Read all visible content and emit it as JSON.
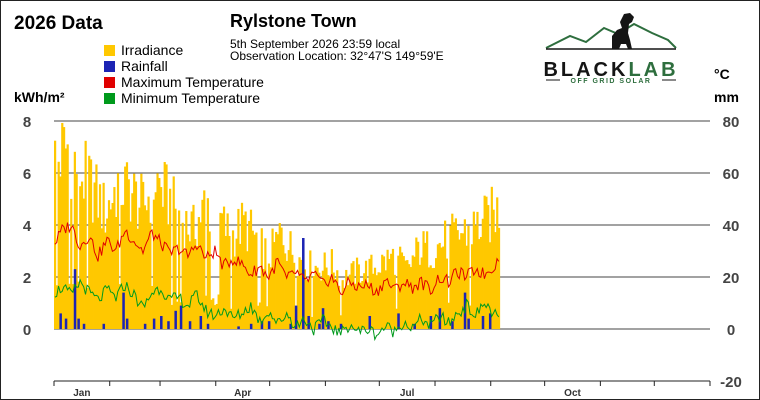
{
  "page": {
    "title": "2026 Data"
  },
  "station": {
    "name": "Rylstone Town",
    "date_line": "5th September 2026  23:59 local",
    "location_line": "Observation Location:   32°47'S 149°59'E"
  },
  "logo": {
    "brand": "BLACKLAB",
    "brand_black": "BLACK",
    "brand_green": "LAB",
    "tagline": "OFF GRID SOLAR"
  },
  "colors": {
    "irradiance": "#ffc800",
    "rainfall": "#1c24b4",
    "max_temp": "#e00000",
    "min_temp": "#009a1c",
    "logo_green": "#2e6e3e",
    "logo_black": "#151515"
  },
  "chart_data": {
    "type": "bar",
    "title": "Rylstone Town",
    "left_axis_label": "kWh/m²",
    "right_axis_labels": [
      "°C",
      "mm"
    ],
    "left_ylim": [
      -2,
      8
    ],
    "right_ylim": [
      -20,
      80
    ],
    "left_ticks": [
      "8",
      "6",
      "4",
      "2",
      "0"
    ],
    "right_ticks": [
      "80",
      "60",
      "40",
      "20",
      "0",
      "-20"
    ],
    "x_ticks": [
      "Jan",
      "Apr",
      "Jul",
      "Oct"
    ],
    "grid": true,
    "legend_position": "top-left",
    "legend": [
      {
        "key": "irradiance",
        "label": "Irradiance"
      },
      {
        "key": "rainfall",
        "label": "Rainfall"
      },
      {
        "key": "max_temp",
        "label": "Maximum Temperature"
      },
      {
        "key": "min_temp",
        "label": "Minimum Temperature"
      }
    ],
    "irradiance_anchors": [
      [
        1,
        7.6
      ],
      [
        8,
        8.3
      ],
      [
        15,
        7.1
      ],
      [
        22,
        6.4
      ],
      [
        29,
        5.3
      ],
      [
        36,
        6.6
      ],
      [
        43,
        6.3
      ],
      [
        50,
        5.5
      ],
      [
        57,
        6.8
      ],
      [
        64,
        5.9
      ],
      [
        71,
        5.0
      ],
      [
        78,
        4.5
      ],
      [
        85,
        5.7
      ],
      [
        92,
        5.1
      ],
      [
        99,
        4.2
      ],
      [
        106,
        4.8
      ],
      [
        113,
        4.1
      ],
      [
        120,
        3.3
      ],
      [
        127,
        4.4
      ],
      [
        134,
        3.4
      ],
      [
        141,
        2.9
      ],
      [
        148,
        2.8
      ],
      [
        155,
        2.9
      ],
      [
        162,
        2.3
      ],
      [
        169,
        2.6
      ],
      [
        176,
        2.7
      ],
      [
        183,
        3.0
      ],
      [
        190,
        3.3
      ],
      [
        197,
        2.7
      ],
      [
        204,
        3.7
      ],
      [
        211,
        3.6
      ],
      [
        218,
        4.0
      ],
      [
        225,
        4.3
      ],
      [
        232,
        4.5
      ],
      [
        239,
        4.8
      ],
      [
        246,
        5.3
      ],
      [
        248,
        5.4
      ]
    ],
    "max_temp_anchors": [
      [
        1,
        33
      ],
      [
        5,
        38
      ],
      [
        10,
        40
      ],
      [
        15,
        32
      ],
      [
        20,
        36
      ],
      [
        25,
        28
      ],
      [
        30,
        34
      ],
      [
        35,
        30
      ],
      [
        40,
        38
      ],
      [
        45,
        34
      ],
      [
        50,
        30
      ],
      [
        55,
        37
      ],
      [
        60,
        33
      ],
      [
        65,
        29
      ],
      [
        70,
        31
      ],
      [
        75,
        28
      ],
      [
        80,
        33
      ],
      [
        85,
        27
      ],
      [
        90,
        30
      ],
      [
        95,
        24
      ],
      [
        100,
        27
      ],
      [
        105,
        25
      ],
      [
        110,
        21
      ],
      [
        115,
        24
      ],
      [
        120,
        20
      ],
      [
        125,
        26
      ],
      [
        130,
        19
      ],
      [
        135,
        22
      ],
      [
        140,
        18
      ],
      [
        145,
        21
      ],
      [
        150,
        17
      ],
      [
        155,
        20
      ],
      [
        160,
        14
      ],
      [
        165,
        18
      ],
      [
        170,
        16
      ],
      [
        175,
        17
      ],
      [
        180,
        14
      ],
      [
        185,
        19
      ],
      [
        190,
        15
      ],
      [
        195,
        18
      ],
      [
        200,
        16
      ],
      [
        205,
        18
      ],
      [
        210,
        15
      ],
      [
        215,
        20
      ],
      [
        220,
        18
      ],
      [
        225,
        22
      ],
      [
        230,
        20
      ],
      [
        235,
        23
      ],
      [
        240,
        21
      ],
      [
        245,
        24
      ],
      [
        248,
        27
      ]
    ],
    "min_temp_anchors": [
      [
        1,
        14
      ],
      [
        5,
        16
      ],
      [
        10,
        13
      ],
      [
        15,
        18
      ],
      [
        20,
        14
      ],
      [
        25,
        11
      ],
      [
        30,
        15
      ],
      [
        35,
        12
      ],
      [
        40,
        17
      ],
      [
        45,
        13
      ],
      [
        50,
        8
      ],
      [
        55,
        14
      ],
      [
        60,
        16
      ],
      [
        65,
        11
      ],
      [
        70,
        12
      ],
      [
        75,
        9
      ],
      [
        80,
        13
      ],
      [
        85,
        7
      ],
      [
        90,
        5
      ],
      [
        95,
        8
      ],
      [
        100,
        4
      ],
      [
        105,
        6
      ],
      [
        110,
        9
      ],
      [
        115,
        3
      ],
      [
        120,
        7
      ],
      [
        125,
        2
      ],
      [
        130,
        6
      ],
      [
        135,
        1
      ],
      [
        140,
        4
      ],
      [
        145,
        0
      ],
      [
        150,
        3
      ],
      [
        155,
        1
      ],
      [
        160,
        -2
      ],
      [
        165,
        2
      ],
      [
        170,
        -1
      ],
      [
        175,
        0
      ],
      [
        180,
        -2
      ],
      [
        185,
        1
      ],
      [
        190,
        -1
      ],
      [
        195,
        3
      ],
      [
        200,
        0
      ],
      [
        205,
        4
      ],
      [
        210,
        1
      ],
      [
        215,
        5
      ],
      [
        220,
        2
      ],
      [
        225,
        6
      ],
      [
        230,
        9
      ],
      [
        235,
        5
      ],
      [
        240,
        10
      ],
      [
        245,
        6
      ],
      [
        248,
        4
      ]
    ],
    "rainfall_events": [
      [
        4,
        6
      ],
      [
        7,
        4
      ],
      [
        12,
        23
      ],
      [
        14,
        4
      ],
      [
        17,
        2
      ],
      [
        28,
        2
      ],
      [
        39,
        14
      ],
      [
        41,
        4
      ],
      [
        51,
        2
      ],
      [
        56,
        4
      ],
      [
        60,
        5
      ],
      [
        64,
        3
      ],
      [
        68,
        7
      ],
      [
        71,
        9
      ],
      [
        76,
        3
      ],
      [
        82,
        5
      ],
      [
        86,
        2
      ],
      [
        103,
        1
      ],
      [
        110,
        2
      ],
      [
        116,
        3
      ],
      [
        120,
        3
      ],
      [
        132,
        2
      ],
      [
        135,
        9
      ],
      [
        139,
        35
      ],
      [
        142,
        5
      ],
      [
        148,
        2
      ],
      [
        150,
        8
      ],
      [
        153,
        3
      ],
      [
        160,
        2
      ],
      [
        176,
        5
      ],
      [
        192,
        6
      ],
      [
        201,
        2
      ],
      [
        210,
        5
      ],
      [
        215,
        8
      ],
      [
        222,
        3
      ],
      [
        229,
        14
      ],
      [
        231,
        4
      ],
      [
        239,
        5
      ],
      [
        243,
        6
      ]
    ]
  }
}
